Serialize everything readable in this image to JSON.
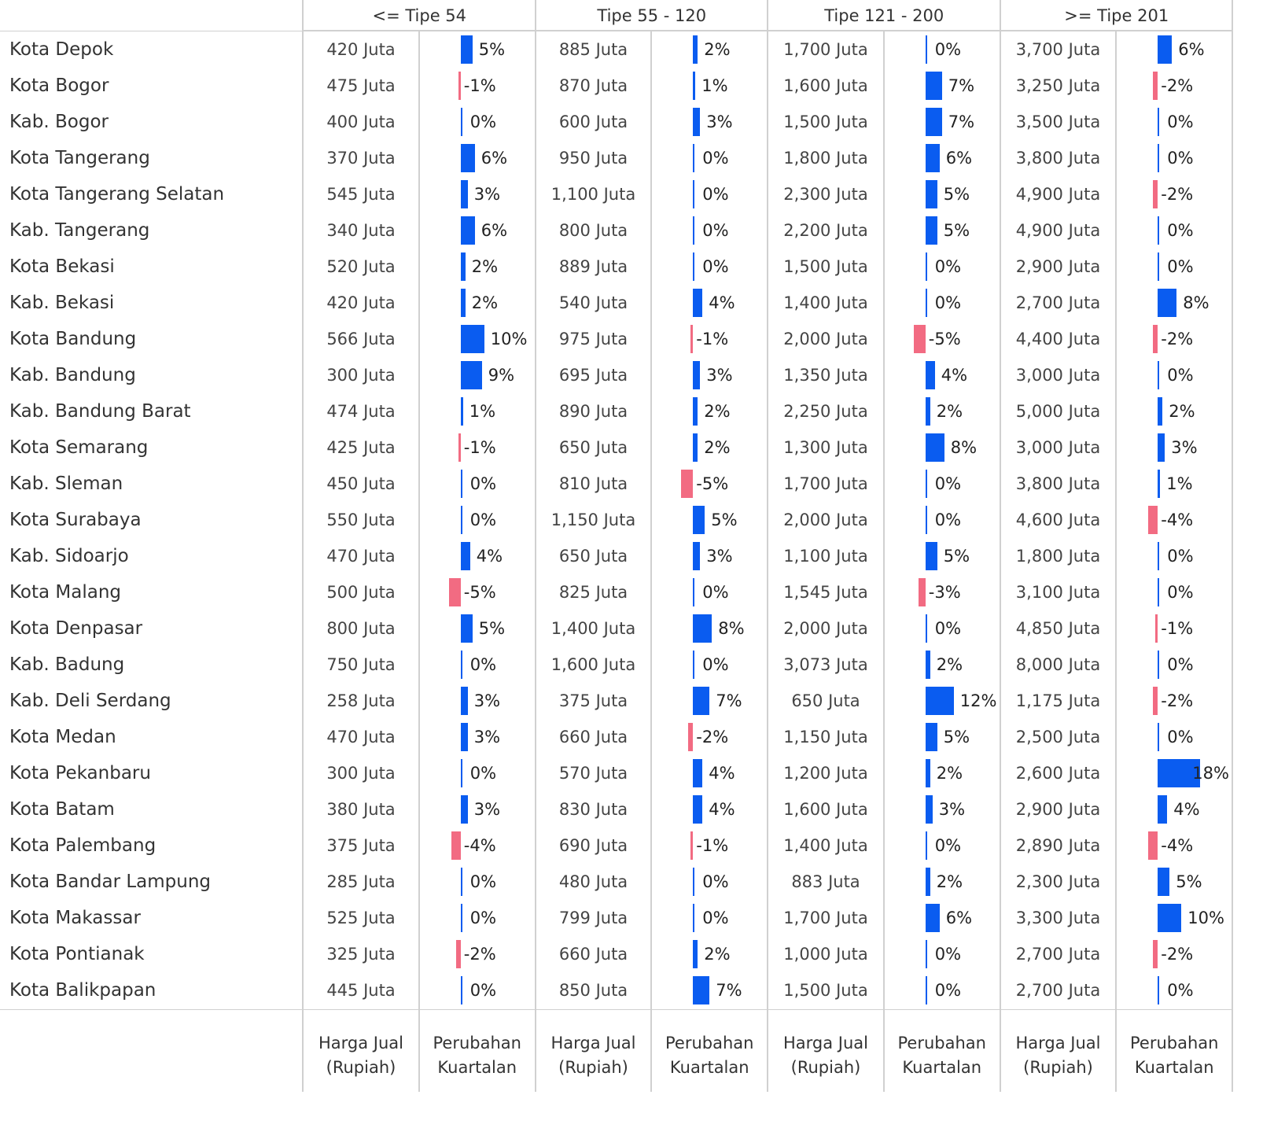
{
  "header": {
    "groups": [
      "<= Tipe 54",
      "Tipe 55 - 120",
      "Tipe 121 - 200",
      ">= Tipe 201"
    ]
  },
  "footer": {
    "price_label": "Harga Jual\n(Rupiah)",
    "change_label": "Perubahan\nKuartalan"
  },
  "colors": {
    "positive": "#0a5cf0",
    "negative": "#f26b82"
  },
  "chart_data": {
    "type": "table",
    "columns": [
      "Harga Jual (Rupiah)",
      "Perubahan Kuartalan"
    ],
    "rows": [
      {
        "name": "Kota Depok",
        "cells": [
          [
            "420 Juta",
            "5%",
            5
          ],
          [
            "885 Juta",
            "2%",
            2
          ],
          [
            "1,700 Juta",
            "0%",
            0
          ],
          [
            "3,700 Juta",
            "6%",
            6
          ]
        ]
      },
      {
        "name": "Kota Bogor",
        "cells": [
          [
            "475 Juta",
            "-1%",
            -1
          ],
          [
            "870 Juta",
            "1%",
            1
          ],
          [
            "1,600 Juta",
            "7%",
            7
          ],
          [
            "3,250 Juta",
            "-2%",
            -2
          ]
        ]
      },
      {
        "name": "Kab. Bogor",
        "cells": [
          [
            "400 Juta",
            "0%",
            0
          ],
          [
            "600 Juta",
            "3%",
            3
          ],
          [
            "1,500 Juta",
            "7%",
            7
          ],
          [
            "3,500 Juta",
            "0%",
            0
          ]
        ]
      },
      {
        "name": "Kota Tangerang",
        "cells": [
          [
            "370 Juta",
            "6%",
            6
          ],
          [
            "950 Juta",
            "0%",
            0
          ],
          [
            "1,800 Juta",
            "6%",
            6
          ],
          [
            "3,800 Juta",
            "0%",
            0
          ]
        ]
      },
      {
        "name": "Kota Tangerang Selatan",
        "cells": [
          [
            "545 Juta",
            "3%",
            3
          ],
          [
            "1,100 Juta",
            "0%",
            0
          ],
          [
            "2,300 Juta",
            "5%",
            5
          ],
          [
            "4,900 Juta",
            "-2%",
            -2
          ]
        ]
      },
      {
        "name": "Kab. Tangerang",
        "cells": [
          [
            "340 Juta",
            "6%",
            6
          ],
          [
            "800 Juta",
            "0%",
            0
          ],
          [
            "2,200 Juta",
            "5%",
            5
          ],
          [
            "4,900 Juta",
            "0%",
            0
          ]
        ]
      },
      {
        "name": "Kota Bekasi",
        "cells": [
          [
            "520 Juta",
            "2%",
            2
          ],
          [
            "889 Juta",
            "0%",
            0
          ],
          [
            "1,500 Juta",
            "0%",
            0
          ],
          [
            "2,900 Juta",
            "0%",
            0
          ]
        ]
      },
      {
        "name": "Kab. Bekasi",
        "cells": [
          [
            "420 Juta",
            "2%",
            2
          ],
          [
            "540 Juta",
            "4%",
            4
          ],
          [
            "1,400 Juta",
            "0%",
            0
          ],
          [
            "2,700 Juta",
            "8%",
            8
          ]
        ]
      },
      {
        "name": "Kota Bandung",
        "cells": [
          [
            "566 Juta",
            "10%",
            10
          ],
          [
            "975 Juta",
            "-1%",
            -1
          ],
          [
            "2,000 Juta",
            "-5%",
            -5
          ],
          [
            "4,400 Juta",
            "-2%",
            -2
          ]
        ]
      },
      {
        "name": "Kab. Bandung",
        "cells": [
          [
            "300 Juta",
            "9%",
            9
          ],
          [
            "695 Juta",
            "3%",
            3
          ],
          [
            "1,350 Juta",
            "4%",
            4
          ],
          [
            "3,000 Juta",
            "0%",
            0
          ]
        ]
      },
      {
        "name": "Kab. Bandung Barat",
        "cells": [
          [
            "474 Juta",
            "1%",
            1
          ],
          [
            "890 Juta",
            "2%",
            2
          ],
          [
            "2,250 Juta",
            "2%",
            2
          ],
          [
            "5,000 Juta",
            "2%",
            2
          ]
        ]
      },
      {
        "name": "Kota Semarang",
        "cells": [
          [
            "425 Juta",
            "-1%",
            -1
          ],
          [
            "650 Juta",
            "2%",
            2
          ],
          [
            "1,300 Juta",
            "8%",
            8
          ],
          [
            "3,000 Juta",
            "3%",
            3
          ]
        ]
      },
      {
        "name": "Kab. Sleman",
        "cells": [
          [
            "450 Juta",
            "0%",
            0
          ],
          [
            "810 Juta",
            "-5%",
            -5
          ],
          [
            "1,700 Juta",
            "0%",
            0
          ],
          [
            "3,800 Juta",
            "1%",
            1
          ]
        ]
      },
      {
        "name": "Kota Surabaya",
        "cells": [
          [
            "550 Juta",
            "0%",
            0
          ],
          [
            "1,150 Juta",
            "5%",
            5
          ],
          [
            "2,000 Juta",
            "0%",
            0
          ],
          [
            "4,600 Juta",
            "-4%",
            -4
          ]
        ]
      },
      {
        "name": "Kab. Sidoarjo",
        "cells": [
          [
            "470 Juta",
            "4%",
            4
          ],
          [
            "650 Juta",
            "3%",
            3
          ],
          [
            "1,100 Juta",
            "5%",
            5
          ],
          [
            "1,800 Juta",
            "0%",
            0
          ]
        ]
      },
      {
        "name": "Kota Malang",
        "cells": [
          [
            "500 Juta",
            "-5%",
            -5
          ],
          [
            "825 Juta",
            "0%",
            0
          ],
          [
            "1,545 Juta",
            "-3%",
            -3
          ],
          [
            "3,100 Juta",
            "0%",
            0
          ]
        ]
      },
      {
        "name": "Kota Denpasar",
        "cells": [
          [
            "800 Juta",
            "5%",
            5
          ],
          [
            "1,400 Juta",
            "8%",
            8
          ],
          [
            "2,000 Juta",
            "0%",
            0
          ],
          [
            "4,850 Juta",
            "-1%",
            -1
          ]
        ]
      },
      {
        "name": "Kab. Badung",
        "cells": [
          [
            "750 Juta",
            "0%",
            0
          ],
          [
            "1,600 Juta",
            "0%",
            0
          ],
          [
            "3,073 Juta",
            "2%",
            2
          ],
          [
            "8,000 Juta",
            "0%",
            0
          ]
        ]
      },
      {
        "name": "Kab. Deli Serdang",
        "cells": [
          [
            "258 Juta",
            "3%",
            3
          ],
          [
            "375 Juta",
            "7%",
            7
          ],
          [
            "650 Juta",
            "12%",
            12
          ],
          [
            "1,175 Juta",
            "-2%",
            -2
          ]
        ]
      },
      {
        "name": "Kota Medan",
        "cells": [
          [
            "470 Juta",
            "3%",
            3
          ],
          [
            "660 Juta",
            "-2%",
            -2
          ],
          [
            "1,150 Juta",
            "5%",
            5
          ],
          [
            "2,500 Juta",
            "0%",
            0
          ]
        ]
      },
      {
        "name": "Kota Pekanbaru",
        "cells": [
          [
            "300 Juta",
            "0%",
            0
          ],
          [
            "570 Juta",
            "4%",
            4
          ],
          [
            "1,200 Juta",
            "2%",
            2
          ],
          [
            "2,600 Juta",
            "18%",
            18
          ]
        ]
      },
      {
        "name": "Kota Batam",
        "cells": [
          [
            "380 Juta",
            "3%",
            3
          ],
          [
            "830 Juta",
            "4%",
            4
          ],
          [
            "1,600 Juta",
            "3%",
            3
          ],
          [
            "2,900 Juta",
            "4%",
            4
          ]
        ]
      },
      {
        "name": "Kota Palembang",
        "cells": [
          [
            "375 Juta",
            "-4%",
            -4
          ],
          [
            "690 Juta",
            "-1%",
            -1
          ],
          [
            "1,400 Juta",
            "0%",
            0
          ],
          [
            "2,890 Juta",
            "-4%",
            -4
          ]
        ]
      },
      {
        "name": "Kota Bandar Lampung",
        "cells": [
          [
            "285 Juta",
            "0%",
            0
          ],
          [
            "480 Juta",
            "0%",
            0
          ],
          [
            "883 Juta",
            "2%",
            2
          ],
          [
            "2,300 Juta",
            "5%",
            5
          ]
        ]
      },
      {
        "name": "Kota Makassar",
        "cells": [
          [
            "525 Juta",
            "0%",
            0
          ],
          [
            "799 Juta",
            "0%",
            0
          ],
          [
            "1,700 Juta",
            "6%",
            6
          ],
          [
            "3,300 Juta",
            "10%",
            10
          ]
        ]
      },
      {
        "name": "Kota Pontianak",
        "cells": [
          [
            "325 Juta",
            "-2%",
            -2
          ],
          [
            "660 Juta",
            "2%",
            2
          ],
          [
            "1,000 Juta",
            "0%",
            0
          ],
          [
            "2,700 Juta",
            "-2%",
            -2
          ]
        ]
      },
      {
        "name": "Kota Balikpapan",
        "cells": [
          [
            "445 Juta",
            "0%",
            0
          ],
          [
            "850 Juta",
            "7%",
            7
          ],
          [
            "1,500 Juta",
            "0%",
            0
          ],
          [
            "2,700 Juta",
            "0%",
            0
          ]
        ]
      }
    ]
  }
}
